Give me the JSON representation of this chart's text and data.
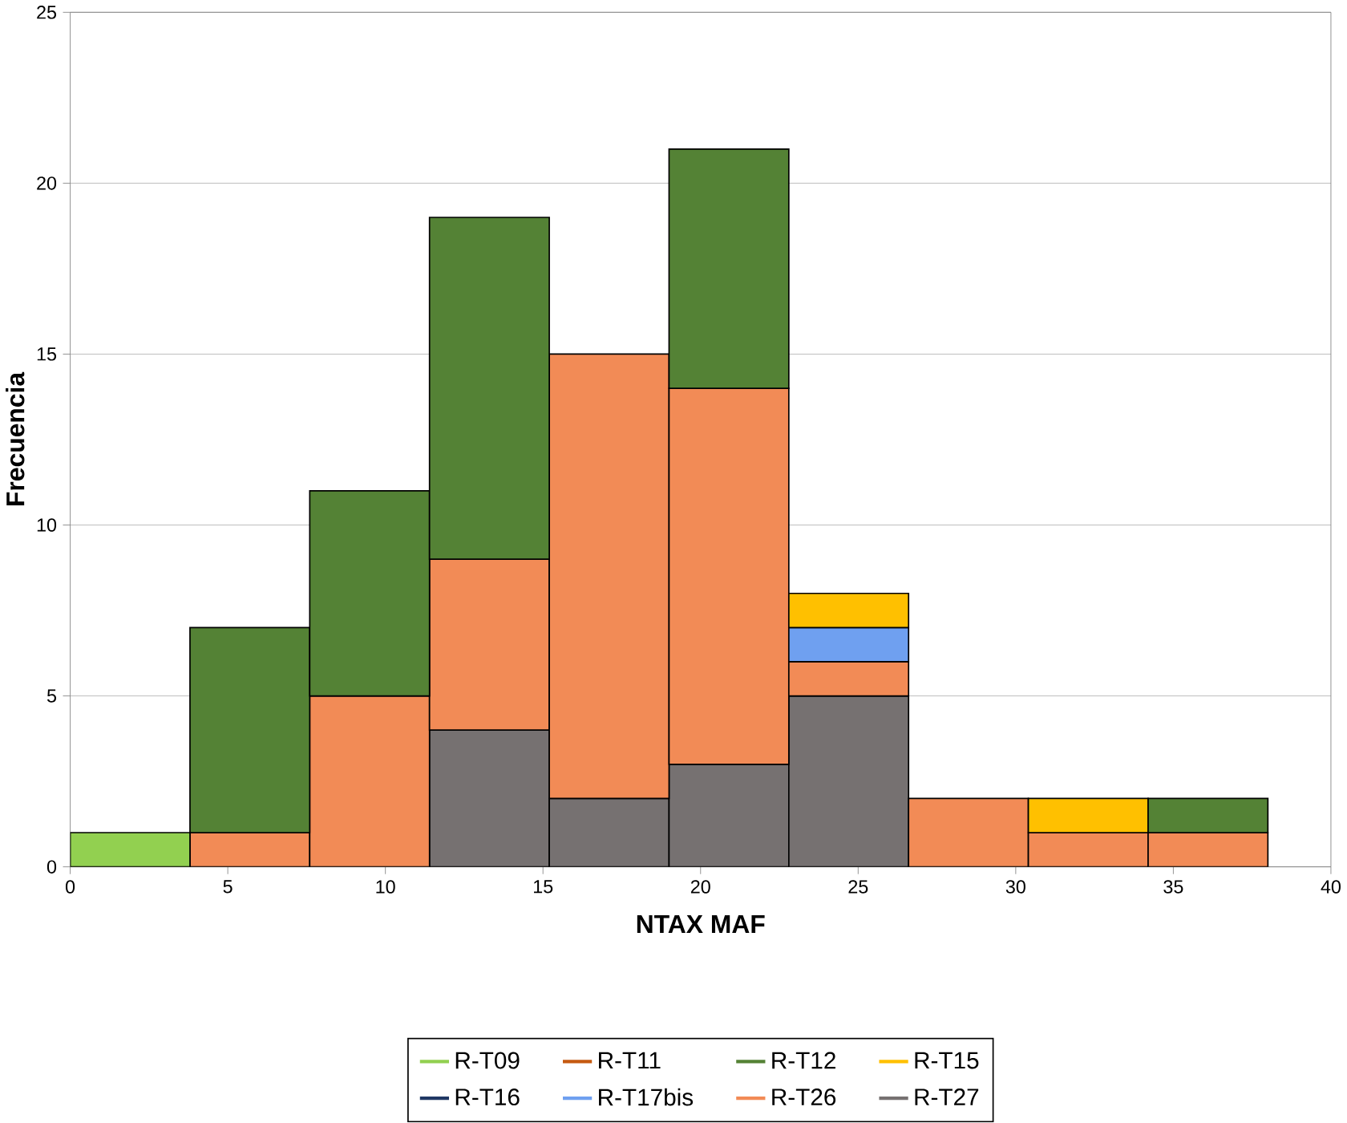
{
  "chart_data": {
    "type": "bar",
    "xlabel": "NTAX MAF",
    "ylabel": "Frecuencia",
    "x": [
      1.9,
      5.7,
      9.5,
      13.3,
      17.1,
      20.9,
      24.7,
      28.5,
      32.3,
      36.1
    ],
    "stacked": true,
    "series": [
      {
        "name": "R-T27",
        "color": "#767171",
        "values": [
          0,
          0,
          0,
          4,
          2,
          3,
          5,
          0,
          0,
          0
        ]
      },
      {
        "name": "R-T26",
        "color": "#f28b56",
        "values": [
          0,
          1,
          5,
          5,
          13,
          11,
          1,
          2,
          1,
          1
        ]
      },
      {
        "name": "R-T17bis",
        "color": "#6fa0f0",
        "values": [
          0,
          0,
          0,
          0,
          0,
          0,
          1,
          0,
          0,
          0
        ]
      },
      {
        "name": "R-T16",
        "color": "#203864",
        "values": [
          0,
          0,
          0,
          0,
          0,
          0,
          0,
          0,
          0,
          0
        ]
      },
      {
        "name": "R-T15",
        "color": "#ffc000",
        "values": [
          0,
          0,
          0,
          0,
          0,
          0,
          1,
          0,
          1,
          0
        ]
      },
      {
        "name": "R-T12",
        "color": "#548235",
        "values": [
          0,
          6,
          6,
          10,
          0,
          7,
          0,
          0,
          0,
          1
        ]
      },
      {
        "name": "R-T11",
        "color": "#c55a11",
        "values": [
          0,
          0,
          0,
          0,
          0,
          0,
          0,
          0,
          0,
          0
        ]
      },
      {
        "name": "R-T09",
        "color": "#92d050",
        "values": [
          1,
          0,
          0,
          0,
          0,
          0,
          0,
          0,
          0,
          0
        ]
      }
    ],
    "xlim": [
      0,
      40
    ],
    "xticks": [
      0,
      5,
      10,
      15,
      20,
      25,
      30,
      35,
      40
    ],
    "ylim": [
      0,
      25
    ],
    "yticks": [
      0,
      5,
      10,
      15,
      20,
      25
    ],
    "grid": "y",
    "legend": "bottom"
  }
}
